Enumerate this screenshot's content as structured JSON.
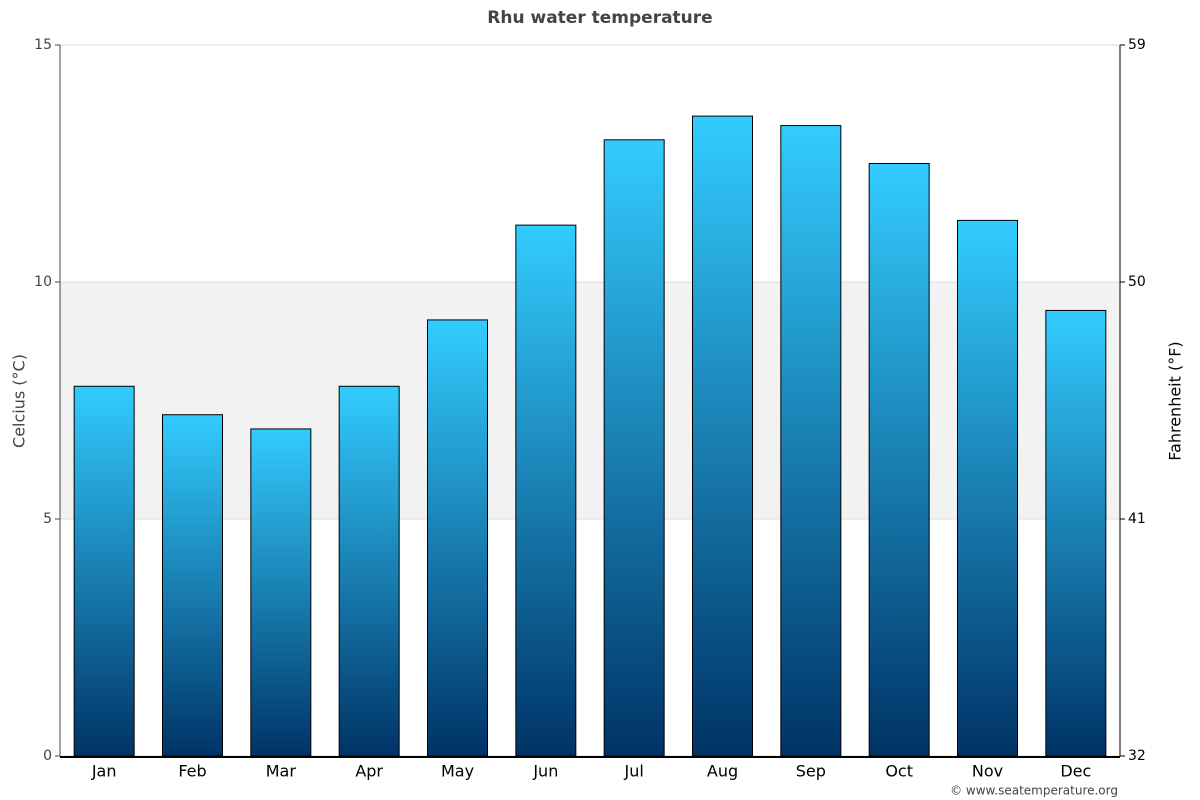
{
  "chart_data": {
    "type": "bar",
    "title": "Rhu water temperature",
    "y_label": "Celcius (°C)",
    "y2_label": "Fahrenheit (°F)",
    "categories": [
      "Jan",
      "Feb",
      "Mar",
      "Apr",
      "May",
      "Jun",
      "Jul",
      "Aug",
      "Sep",
      "Oct",
      "Nov",
      "Dec"
    ],
    "values": [
      7.8,
      7.2,
      6.9,
      7.8,
      9.2,
      11.2,
      13.0,
      13.5,
      13.3,
      12.5,
      11.3,
      9.4
    ],
    "color_top": "#33ccff",
    "color_bottom": "#003366",
    "ylim": [
      0,
      15
    ],
    "yticks": [
      0,
      5,
      10,
      15
    ],
    "y2lim": [
      32,
      59
    ],
    "y2ticks": [
      32,
      41,
      50,
      59
    ],
    "shaded_band": [
      5,
      10
    ],
    "grid": true,
    "credit": "© www.seatemperature.org"
  }
}
